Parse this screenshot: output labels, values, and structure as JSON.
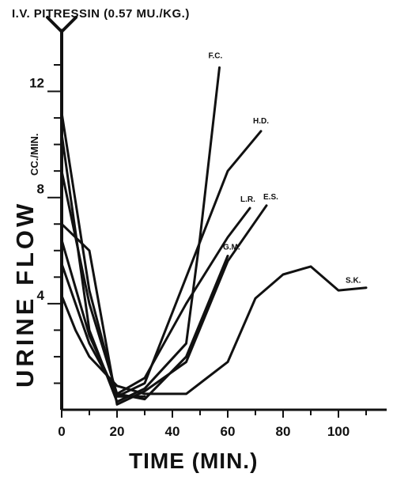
{
  "header_text": "I.V. PITRESSIN (0.57 MU./KG.)",
  "chart_data": {
    "type": "line",
    "xlabel": "TIME (MIN.)",
    "ylabel": "URINE FLOW",
    "ylabel_unit": "CC./MIN.",
    "xlim": [
      0,
      110
    ],
    "ylim": [
      0,
      14
    ],
    "x_ticks": [
      0,
      20,
      40,
      60,
      80,
      100
    ],
    "y_ticks": [
      4,
      8,
      12
    ],
    "grid": false,
    "colors": {
      "line": "#111111",
      "background": "#ffffff"
    },
    "series": [
      {
        "name": "F.C.",
        "x": [
          0,
          10,
          20,
          30,
          45,
          50,
          57
        ],
        "y": [
          10.4,
          3.0,
          0.3,
          0.8,
          2.5,
          6.5,
          12.9
        ]
      },
      {
        "name": "H.D.",
        "x": [
          0,
          10,
          20,
          30,
          45,
          60,
          72
        ],
        "y": [
          11.2,
          4.5,
          0.5,
          1.0,
          5.0,
          9.0,
          10.5
        ]
      },
      {
        "name": "L.R.",
        "x": [
          0,
          10,
          20,
          30,
          45,
          60,
          68
        ],
        "y": [
          5.5,
          2.5,
          0.6,
          1.2,
          4.0,
          6.5,
          7.6
        ]
      },
      {
        "name": "E.S.",
        "x": [
          0,
          10,
          20,
          30,
          45,
          60,
          74
        ],
        "y": [
          7.0,
          6.0,
          0.2,
          0.7,
          1.8,
          5.6,
          7.7
        ]
      },
      {
        "name": "G.M.",
        "x": [
          0,
          10,
          20,
          30,
          45,
          60
        ],
        "y": [
          9.0,
          4.0,
          0.6,
          0.4,
          2.0,
          5.8
        ]
      },
      {
        "name": "",
        "x": [
          0,
          10,
          20,
          30
        ],
        "y": [
          6.4,
          2.8,
          0.5,
          0.5
        ]
      },
      {
        "name": "S.K.",
        "x": [
          0,
          5,
          10,
          20,
          30,
          45,
          60,
          70,
          80,
          90,
          100,
          110
        ],
        "y": [
          4.3,
          3.0,
          2.0,
          0.9,
          0.6,
          0.6,
          1.8,
          4.2,
          5.1,
          5.4,
          4.5,
          4.6
        ]
      }
    ],
    "series_labels": [
      "F.C.",
      "H.D.",
      "L.R.",
      "E.S.",
      "G.M.",
      "S.K."
    ]
  }
}
